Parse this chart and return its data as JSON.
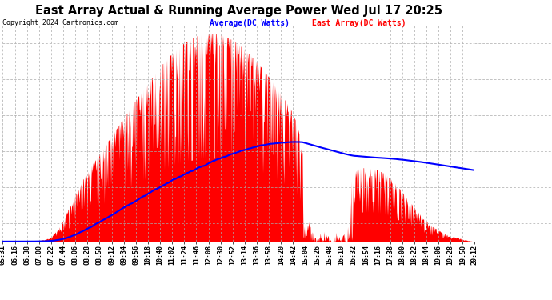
{
  "title": "East Array Actual & Running Average Power Wed Jul 17 20:25",
  "copyright": "Copyright 2024 Cartronics.com",
  "legend_avg": "Average(DC Watts)",
  "legend_east": "East Array(DC Watts)",
  "yticks": [
    0.0,
    129.7,
    259.4,
    389.1,
    518.7,
    648.4,
    778.1,
    907.8,
    1037.5,
    1167.2,
    1296.9,
    1426.5,
    1556.2
  ],
  "ymax": 1556.2,
  "bg_color": "#ffffff",
  "fill_color": "#ff0000",
  "line_color": "#0000ff",
  "grid_color": "#aaaaaa",
  "xtick_labels": [
    "05:31",
    "06:16",
    "06:38",
    "07:00",
    "07:22",
    "07:44",
    "08:06",
    "08:28",
    "08:50",
    "09:12",
    "09:34",
    "09:56",
    "10:18",
    "10:40",
    "11:02",
    "11:24",
    "11:46",
    "12:08",
    "12:30",
    "12:52",
    "13:14",
    "13:36",
    "13:58",
    "14:20",
    "14:42",
    "15:04",
    "15:26",
    "15:48",
    "16:10",
    "16:32",
    "16:54",
    "17:16",
    "17:38",
    "18:00",
    "18:22",
    "18:44",
    "19:06",
    "19:28",
    "19:50",
    "20:12"
  ]
}
